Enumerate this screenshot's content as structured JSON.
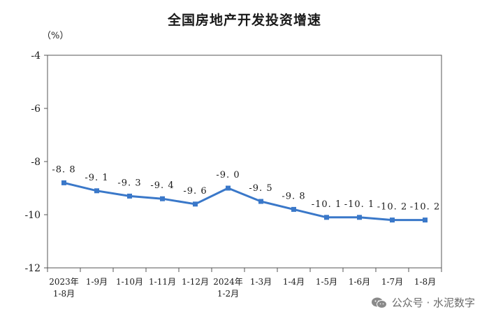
{
  "chart_data": {
    "type": "line",
    "title": "全国房地产开发投资增速",
    "ylabel": "（%）",
    "xlabel": "",
    "ylim": [
      -12,
      -4
    ],
    "yticks": [
      -4,
      -6,
      -8,
      -10,
      -12
    ],
    "categories": [
      [
        "2023年",
        "1-8月"
      ],
      [
        "1-9月"
      ],
      [
        "1-10月"
      ],
      [
        "1-11月"
      ],
      [
        "1-12月"
      ],
      [
        "2024年",
        "1-2月"
      ],
      [
        "1-3月"
      ],
      [
        "1-4月"
      ],
      [
        "1-5月"
      ],
      [
        "1-6月"
      ],
      [
        "1-7月"
      ],
      [
        "1-8月"
      ]
    ],
    "values": [
      -8.8,
      -9.1,
      -9.3,
      -9.4,
      -9.6,
      -9.0,
      -9.5,
      -9.8,
      -10.1,
      -10.1,
      -10.2,
      -10.2
    ],
    "data_labels": [
      "-8. 8",
      "-9. 1",
      "-9. 3",
      "-9. 4",
      "-9. 6",
      "-9. 0",
      "-9. 5",
      "-9. 8",
      "-10. 1",
      "-10. 1",
      "-10. 2",
      "-10. 2"
    ],
    "grid": false,
    "line_color": "#3a78c9"
  },
  "watermark": {
    "text": "公众号 · 水泥数字",
    "icon": "wechat-icon"
  }
}
